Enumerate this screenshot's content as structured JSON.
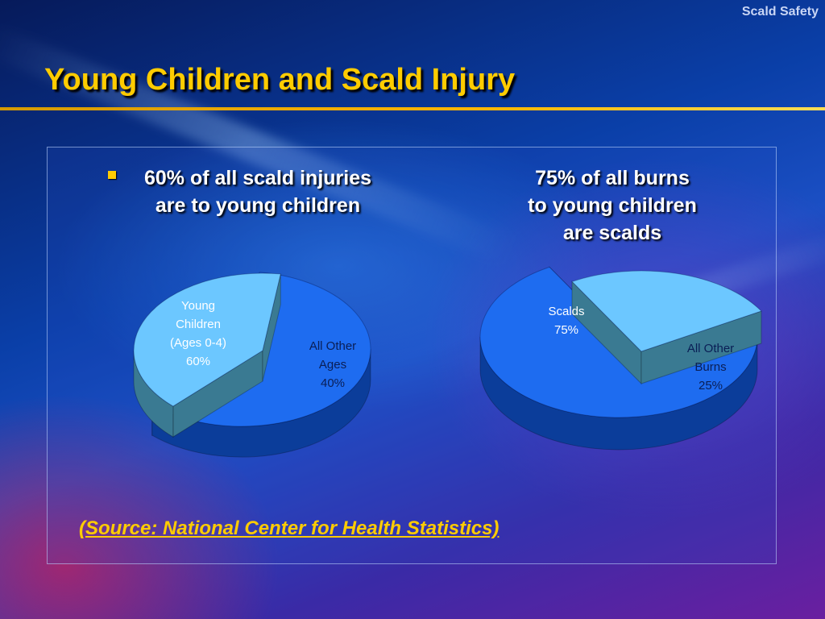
{
  "header": {
    "brand": "Scald Safety"
  },
  "slide": {
    "title": "Young Children and Scald Injury",
    "bullet": {
      "line1": "60% of all scald injuries",
      "line2": "are to young children"
    },
    "right_heading": {
      "line1": "75% of all burns",
      "line2": "to young children",
      "line3": "are scalds"
    },
    "source": "(Source: National Center for Health Statistics) "
  },
  "colors": {
    "main": "#1e6cf0",
    "main_side": "#0b3d9a",
    "light": "#6cc7ff",
    "light_side": "#3a7a92",
    "title": "#ffcc00"
  },
  "chart_data": [
    {
      "type": "pie",
      "title": "",
      "slices": [
        {
          "label_lines": [
            "Young",
            "Children",
            "(Ages 0-4)",
            "60%"
          ],
          "value": 60,
          "exploded": false
        },
        {
          "label_lines": [
            "All Other",
            "Ages",
            "40%"
          ],
          "value": 40,
          "exploded": true
        }
      ]
    },
    {
      "type": "pie",
      "title": "",
      "slices": [
        {
          "label_lines": [
            "Scalds",
            "75%"
          ],
          "value": 75,
          "exploded": false
        },
        {
          "label_lines": [
            "All Other",
            "Burns",
            "25%"
          ],
          "value": 25,
          "exploded": true
        }
      ]
    }
  ]
}
